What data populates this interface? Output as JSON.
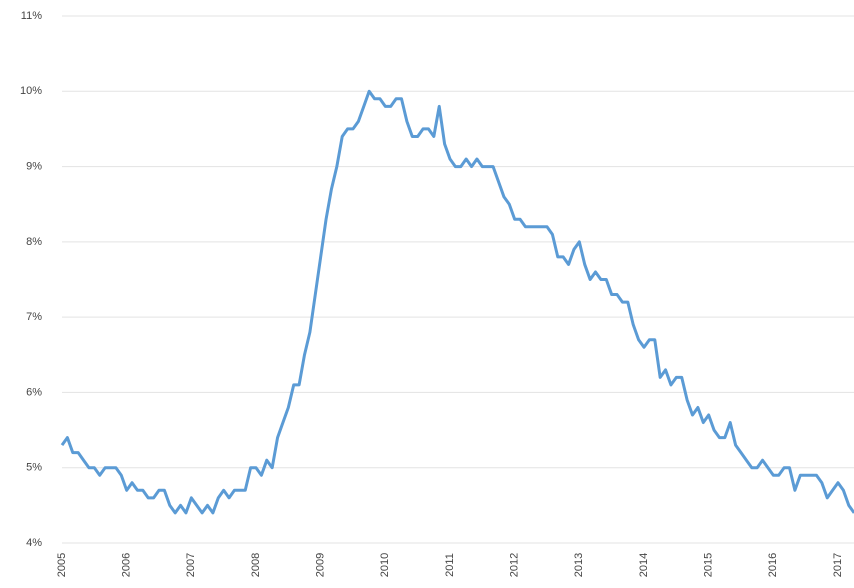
{
  "chart_data": {
    "type": "line",
    "categories": [
      "2005",
      null,
      null,
      null,
      null,
      null,
      null,
      null,
      null,
      null,
      null,
      null,
      "2006",
      null,
      null,
      null,
      null,
      null,
      null,
      null,
      null,
      null,
      null,
      null,
      "2007",
      null,
      null,
      null,
      null,
      null,
      null,
      null,
      null,
      null,
      null,
      null,
      "2008",
      null,
      null,
      null,
      null,
      null,
      null,
      null,
      null,
      null,
      null,
      null,
      "2009",
      null,
      null,
      null,
      null,
      null,
      null,
      null,
      null,
      null,
      null,
      null,
      "2010",
      null,
      null,
      null,
      null,
      null,
      null,
      null,
      null,
      null,
      null,
      null,
      "2011",
      null,
      null,
      null,
      null,
      null,
      null,
      null,
      null,
      null,
      null,
      null,
      "2012",
      null,
      null,
      null,
      null,
      null,
      null,
      null,
      null,
      null,
      null,
      null,
      "2013",
      null,
      null,
      null,
      null,
      null,
      null,
      null,
      null,
      null,
      null,
      null,
      "2014",
      null,
      null,
      null,
      null,
      null,
      null,
      null,
      null,
      null,
      null,
      null,
      "2015",
      null,
      null,
      null,
      null,
      null,
      null,
      null,
      null,
      null,
      null,
      null,
      "2016",
      null,
      null,
      null,
      null,
      null,
      null,
      null,
      null,
      null,
      null,
      null,
      "2017",
      null,
      null,
      null
    ],
    "values": [
      5.3,
      5.4,
      5.2,
      5.2,
      5.1,
      5.0,
      5.0,
      4.9,
      5.0,
      5.0,
      5.0,
      4.9,
      4.7,
      4.8,
      4.7,
      4.7,
      4.6,
      4.6,
      4.7,
      4.7,
      4.5,
      4.4,
      4.5,
      4.4,
      4.6,
      4.5,
      4.4,
      4.5,
      4.4,
      4.6,
      4.7,
      4.6,
      4.7,
      4.7,
      4.7,
      5.0,
      5.0,
      4.9,
      5.1,
      5.0,
      5.4,
      5.6,
      5.8,
      6.1,
      6.1,
      6.5,
      6.8,
      7.3,
      7.8,
      8.3,
      8.7,
      9.0,
      9.4,
      9.5,
      9.5,
      9.6,
      9.8,
      10.0,
      9.9,
      9.9,
      9.8,
      9.8,
      9.9,
      9.9,
      9.6,
      9.4,
      9.4,
      9.5,
      9.5,
      9.4,
      9.8,
      9.3,
      9.1,
      9.0,
      9.0,
      9.1,
      9.0,
      9.1,
      9.0,
      9.0,
      9.0,
      8.8,
      8.6,
      8.5,
      8.3,
      8.3,
      8.2,
      8.2,
      8.2,
      8.2,
      8.2,
      8.1,
      7.8,
      7.8,
      7.7,
      7.9,
      8.0,
      7.7,
      7.5,
      7.6,
      7.5,
      7.5,
      7.3,
      7.3,
      7.2,
      7.2,
      6.9,
      6.7,
      6.6,
      6.7,
      6.7,
      6.2,
      6.3,
      6.1,
      6.2,
      6.2,
      5.9,
      5.7,
      5.8,
      5.6,
      5.7,
      5.5,
      5.4,
      5.4,
      5.6,
      5.3,
      5.2,
      5.1,
      5.0,
      5.0,
      5.1,
      5.0,
      4.9,
      4.9,
      5.0,
      5.0,
      4.7,
      4.9,
      4.9,
      4.9,
      4.9,
      4.8,
      4.6,
      4.7,
      4.8,
      4.7,
      4.5,
      4.4
    ],
    "color": "#5b9bd5",
    "ylim": [
      4,
      11
    ],
    "yticks": [
      {
        "value": 4,
        "label": "4%"
      },
      {
        "value": 5,
        "label": "5%"
      },
      {
        "value": 6,
        "label": "6%"
      },
      {
        "value": 7,
        "label": "7%"
      },
      {
        "value": 8,
        "label": "8%"
      },
      {
        "value": 9,
        "label": "9%"
      },
      {
        "value": 10,
        "label": "10%"
      },
      {
        "value": 11,
        "label": "11%"
      }
    ],
    "grid": true
  }
}
